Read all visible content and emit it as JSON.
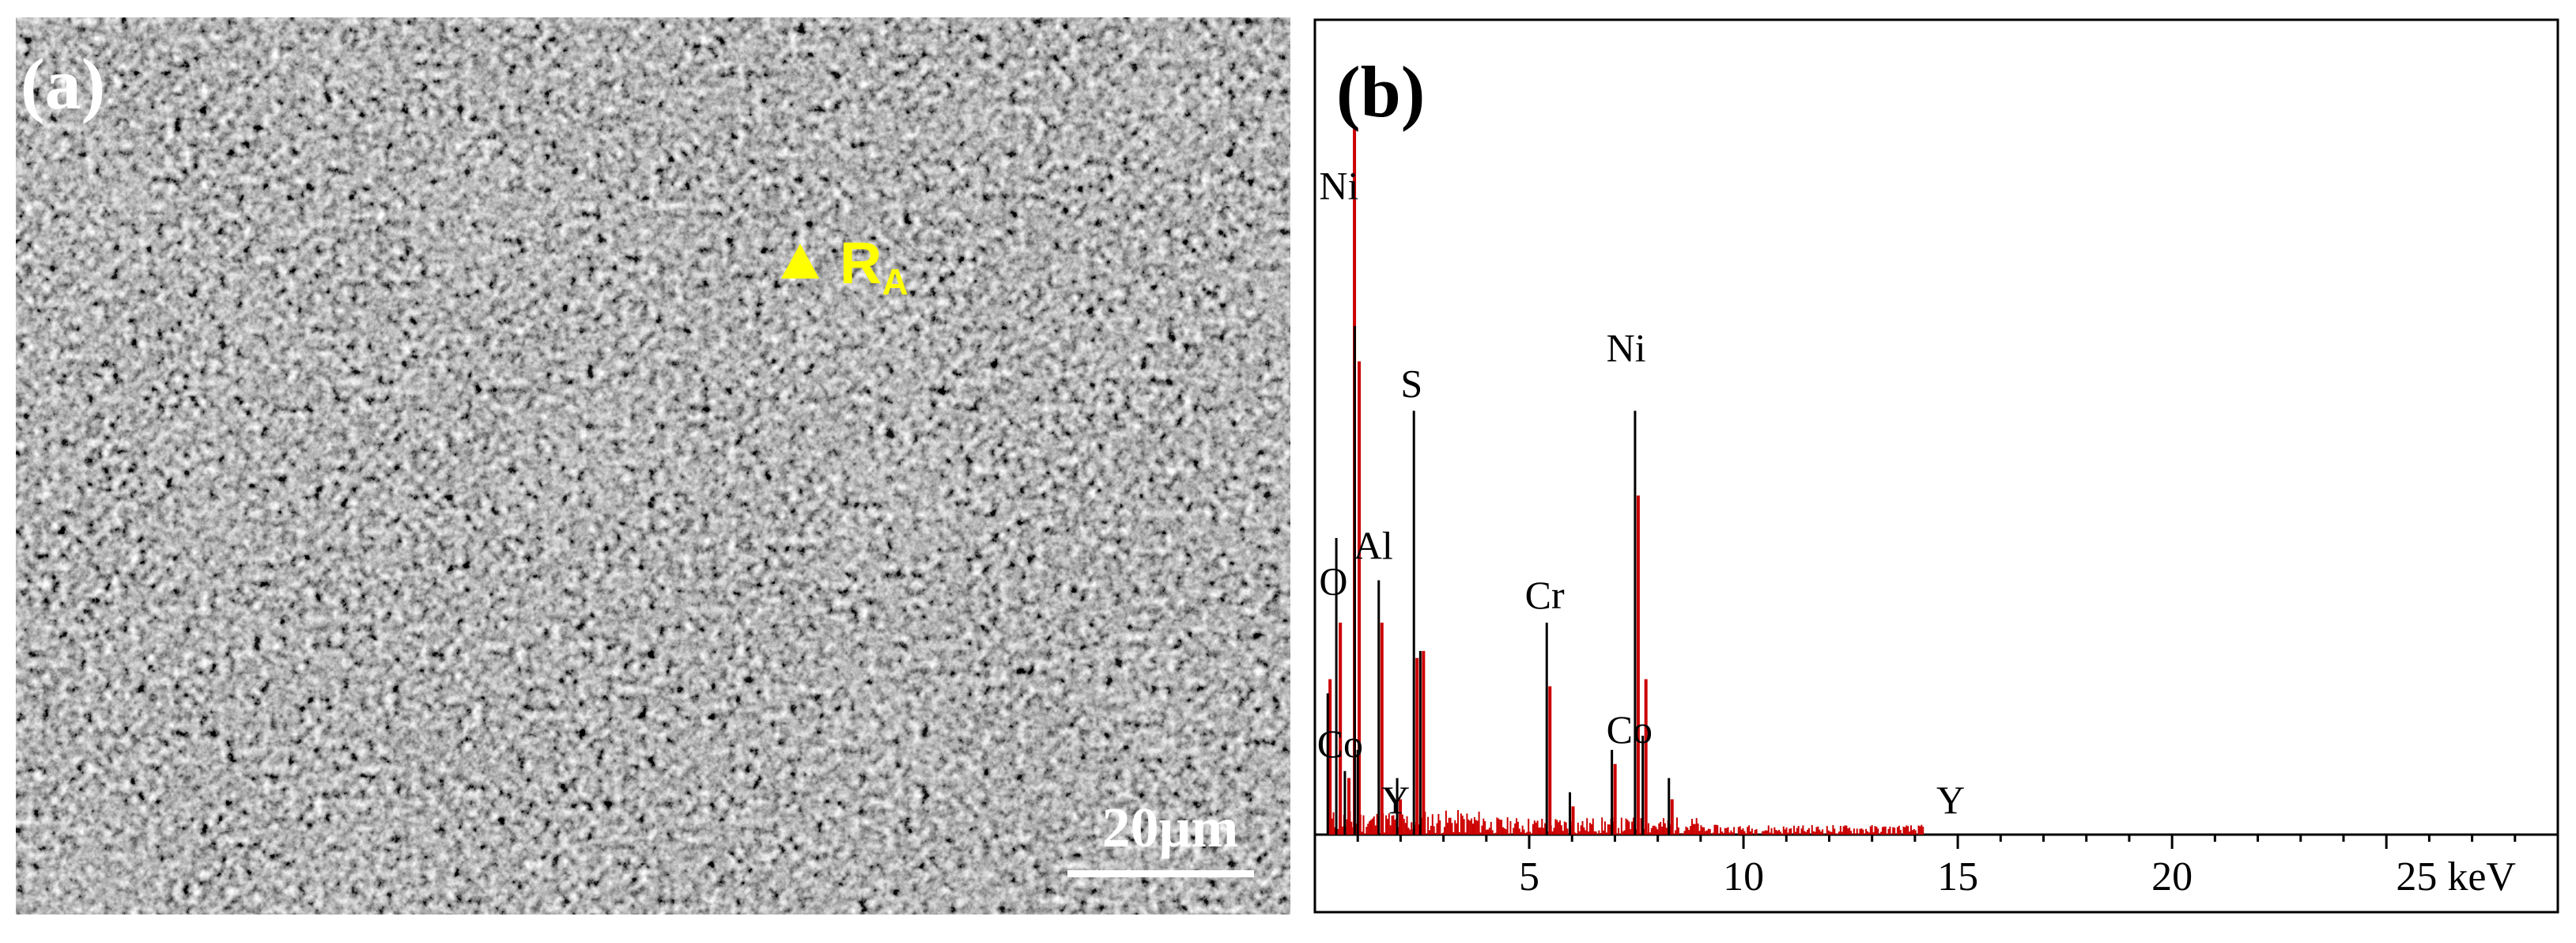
{
  "panel_a": {
    "label": "(a)",
    "marker_symbol": "▲",
    "marker_text": "R",
    "marker_sub": "A",
    "scale_bar_text": "20μm",
    "marker_color": "#ffff00"
  },
  "panel_b": {
    "label": "(b)"
  },
  "chart_data": {
    "type": "line",
    "title": "",
    "xlabel": "keV",
    "ylabel": "",
    "xlim": [
      0,
      29
    ],
    "ylim": [
      0,
      100
    ],
    "grid": false,
    "x_ticks": [
      5,
      10,
      15,
      20,
      25
    ],
    "x_tick_labels": [
      "5",
      "10",
      "15",
      "20",
      "25 keV"
    ],
    "series": [
      {
        "color": "#000000",
        "peaks": [
          [
            0.3,
            20
          ],
          [
            0.5,
            42
          ],
          [
            0.7,
            9
          ],
          [
            0.93,
            72
          ],
          [
            1.0,
            12
          ],
          [
            1.49,
            36
          ],
          [
            1.92,
            8
          ],
          [
            2.31,
            60
          ],
          [
            2.46,
            26
          ],
          [
            5.41,
            30
          ],
          [
            5.95,
            6
          ],
          [
            6.93,
            12
          ],
          [
            7.47,
            60
          ],
          [
            7.65,
            14
          ],
          [
            8.26,
            8
          ]
        ]
      },
      {
        "color": "#cc0000",
        "peaks": [
          [
            0.28,
            22
          ],
          [
            0.52,
            30
          ],
          [
            0.72,
            8
          ],
          [
            0.85,
            100
          ],
          [
            0.96,
            67
          ],
          [
            1.49,
            30
          ],
          [
            1.92,
            5
          ],
          [
            2.31,
            25
          ],
          [
            2.46,
            26
          ],
          [
            5.41,
            21
          ],
          [
            5.95,
            4
          ],
          [
            6.93,
            10
          ],
          [
            7.47,
            48
          ],
          [
            7.65,
            22
          ],
          [
            8.26,
            5
          ]
        ]
      }
    ],
    "annotations": [
      {
        "text": "Ni",
        "x": 0.1,
        "y": 90
      },
      {
        "text": "S",
        "x": 2.0,
        "y": 62
      },
      {
        "text": "Al",
        "x": 0.9,
        "y": 39
      },
      {
        "text": "O",
        "x": 0.1,
        "y": 34
      },
      {
        "text": "Cr",
        "x": 4.9,
        "y": 32
      },
      {
        "text": "Ni",
        "x": 6.8,
        "y": 67
      },
      {
        "text": "Co",
        "x": 0.05,
        "y": 11
      },
      {
        "text": "Y",
        "x": 1.55,
        "y": 3
      },
      {
        "text": "Co",
        "x": 6.8,
        "y": 13
      },
      {
        "text": "Y",
        "x": 14.5,
        "y": 3
      }
    ]
  }
}
